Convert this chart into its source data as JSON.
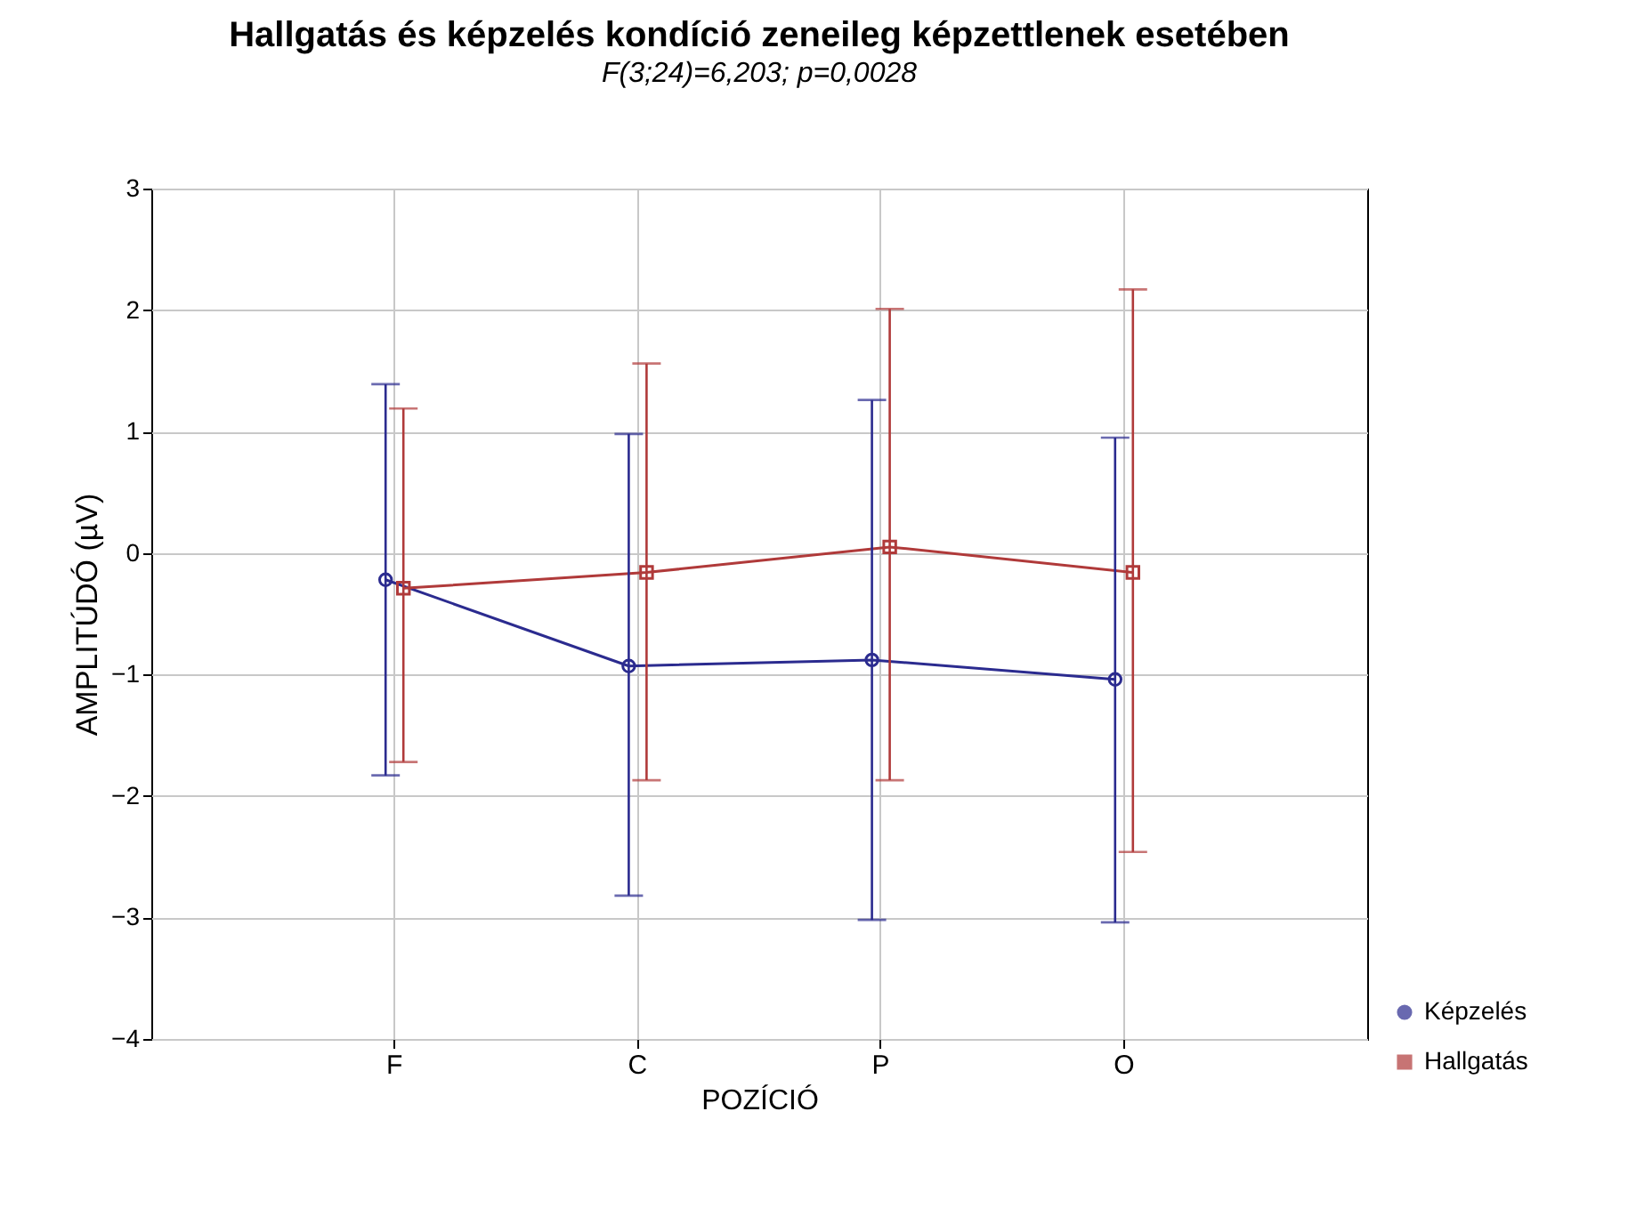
{
  "chart_data": {
    "type": "line",
    "title": "Hallgatás és képzelés kondíció zeneileg képzettlenek esetében",
    "subtitle": "F(3;24)=6,203; p=0,0028",
    "xlabel": "POZÍCIÓ",
    "ylabel": "AMPLITÚDÓ (µV)",
    "categories": [
      "F",
      "C",
      "P",
      "O"
    ],
    "series": [
      {
        "name": "Képzelés",
        "color": "#2b2b8f",
        "marker": "circle",
        "values": [
          -0.22,
          -0.93,
          -0.88,
          -1.04
        ],
        "errors": [
          [
            -1.83,
            1.39
          ],
          [
            -2.82,
            0.98
          ],
          [
            -3.02,
            1.26
          ],
          [
            -3.04,
            0.95
          ]
        ]
      },
      {
        "name": "Hallgatás",
        "color": "#b03a3a",
        "marker": "square",
        "values": [
          -0.29,
          -0.16,
          0.05,
          -0.16
        ],
        "errors": [
          [
            -1.72,
            1.19
          ],
          [
            -1.87,
            1.56
          ],
          [
            -1.87,
            2.01
          ],
          [
            -2.46,
            2.17
          ]
        ]
      }
    ],
    "ylim": [
      -4,
      3
    ],
    "yticks": [
      -4,
      -3,
      -2,
      -1,
      0,
      1,
      2,
      3
    ],
    "grid": true,
    "legend": "bottom right"
  }
}
